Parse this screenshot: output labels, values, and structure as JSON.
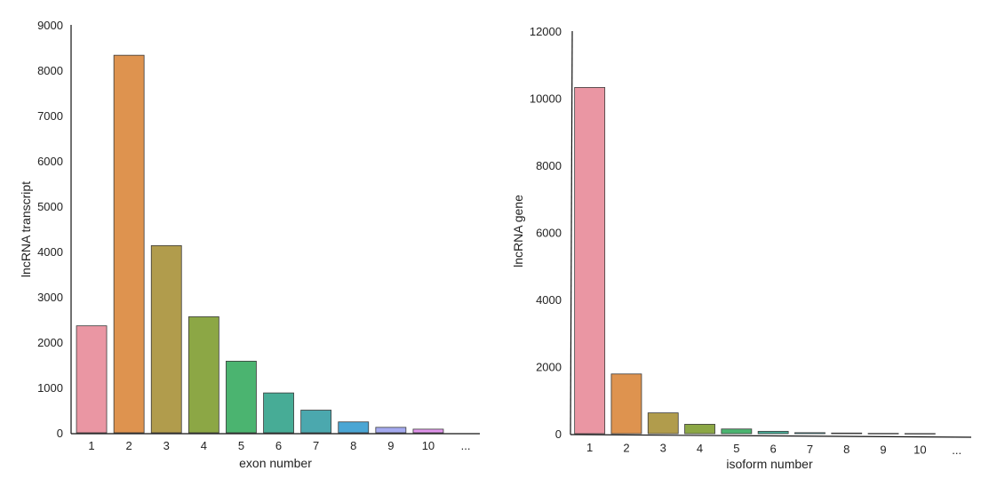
{
  "chart_data": [
    {
      "type": "bar",
      "xlabel": "exon number",
      "ylabel": "lncRNA transcript",
      "categories": [
        "1",
        "2",
        "3",
        "4",
        "5",
        "6",
        "7",
        "8",
        "9",
        "10",
        "..."
      ],
      "values": [
        2360,
        8330,
        4130,
        2560,
        1580,
        880,
        500,
        240,
        120,
        80,
        0
      ],
      "ylim": [
        0,
        9000
      ],
      "yticks": [
        0,
        1000,
        2000,
        3000,
        4000,
        5000,
        6000,
        7000,
        8000,
        9000
      ],
      "colors": [
        "#ea96a3",
        "#de934f",
        "#b19c4c",
        "#8ca745",
        "#4bb470",
        "#47ac96",
        "#4ba8ae",
        "#4aa6d4",
        "#a5aaef",
        "#e295ec",
        "#ffffff"
      ],
      "grid": false,
      "legend": "none"
    },
    {
      "type": "bar",
      "xlabel": "isoform number",
      "ylabel": "lncRNA gene",
      "categories": [
        "1",
        "2",
        "3",
        "4",
        "5",
        "6",
        "7",
        "8",
        "9",
        "10",
        "..."
      ],
      "values": [
        10320,
        1780,
        620,
        280,
        140,
        70,
        30,
        20,
        10,
        5,
        0
      ],
      "ylim": [
        0,
        12000
      ],
      "yticks": [
        0,
        2000,
        4000,
        6000,
        8000,
        10000,
        12000
      ],
      "colors": [
        "#ea96a3",
        "#de934f",
        "#b19c4c",
        "#8ca745",
        "#4bb470",
        "#47ac96",
        "#4ba8ae",
        "#4aa6d4",
        "#a5aaef",
        "#e295ec",
        "#ffffff"
      ],
      "grid": false,
      "legend": "none"
    }
  ]
}
